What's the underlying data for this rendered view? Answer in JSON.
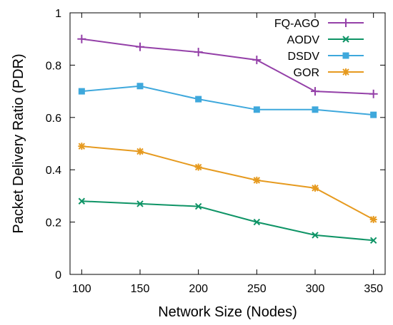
{
  "chart_data": {
    "type": "line",
    "title": "",
    "xlabel": "Network Size (Nodes)",
    "ylabel": "Packet Delivery Ratio (PDR)",
    "x": [
      100,
      150,
      200,
      250,
      300,
      350
    ],
    "xlim": [
      90,
      360
    ],
    "ylim": [
      0,
      1
    ],
    "xticks": [
      100,
      150,
      200,
      250,
      300,
      350
    ],
    "yticks": [
      0,
      0.2,
      0.4,
      0.6,
      0.8,
      1
    ],
    "ytick_labels": [
      "0",
      "0.2",
      "0.4",
      "0.6",
      "0.8",
      "1"
    ],
    "grid": false,
    "legend_position": "top-right",
    "series": [
      {
        "name": "FQ-AGO",
        "values": [
          0.9,
          0.87,
          0.85,
          0.82,
          0.7,
          0.69
        ],
        "color": "#9440a8",
        "marker": "plus"
      },
      {
        "name": "AODV",
        "values": [
          0.28,
          0.27,
          0.26,
          0.2,
          0.15,
          0.13
        ],
        "color": "#0f9466",
        "marker": "cross"
      },
      {
        "name": "DSDV",
        "values": [
          0.7,
          0.72,
          0.67,
          0.63,
          0.63,
          0.61
        ],
        "color": "#3ea8dc",
        "marker": "square"
      },
      {
        "name": "GOR",
        "values": [
          0.49,
          0.47,
          0.41,
          0.36,
          0.33,
          0.21
        ],
        "color": "#e69a1f",
        "marker": "star"
      }
    ]
  }
}
